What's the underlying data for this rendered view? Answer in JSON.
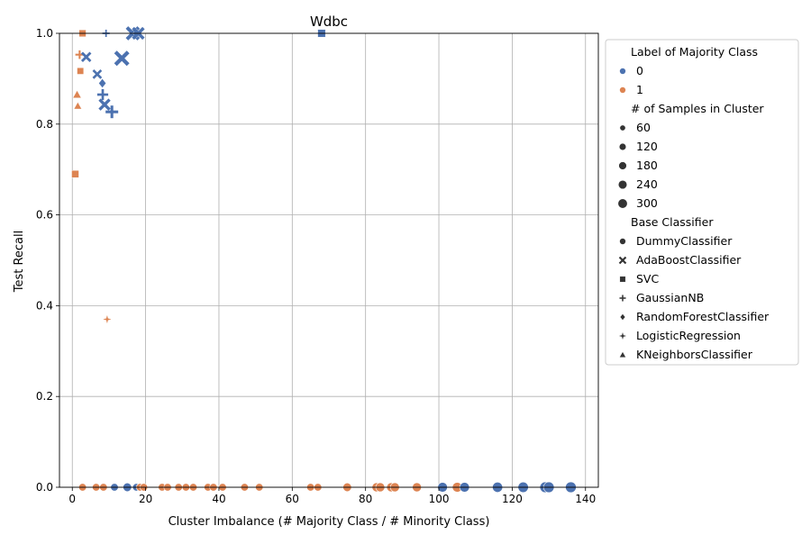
{
  "chart_data": {
    "type": "scatter",
    "title": "Wdbc",
    "xlabel": "Cluster Imbalance (# Majority Class / # Minority Class)",
    "ylabel": "Test Recall",
    "xlim": [
      -3.5,
      143.5
    ],
    "ylim": [
      0.0,
      1.0
    ],
    "x_ticks": [
      0,
      20,
      40,
      60,
      80,
      100,
      120,
      140
    ],
    "y_ticks": [
      0.0,
      0.2,
      0.4,
      0.6,
      0.8,
      1.0
    ],
    "grid": true,
    "legend_placement": "outside-right",
    "colors": {
      "0": "#4c72b0",
      "1": "#dd8452"
    },
    "legend": {
      "hue_title": "Label of Majority Class",
      "hue_entries": [
        {
          "label": "0",
          "color": "#4c72b0"
        },
        {
          "label": "1",
          "color": "#dd8452"
        }
      ],
      "size_title": "# of Samples in Cluster",
      "size_entries": [
        "60",
        "120",
        "180",
        "240",
        "300"
      ],
      "style_title": "Base Classifier",
      "style_entries": [
        {
          "label": "DummyClassifier",
          "marker": "circle"
        },
        {
          "label": "AdaBoostClassifier",
          "marker": "x"
        },
        {
          "label": "SVC",
          "marker": "square"
        },
        {
          "label": "GaussianNB",
          "marker": "plus"
        },
        {
          "label": "RandomForestClassifier",
          "marker": "diamond"
        },
        {
          "label": "LogisticRegression",
          "marker": "star"
        },
        {
          "label": "KNeighborsClassifier",
          "marker": "triangle"
        }
      ]
    },
    "points": [
      {
        "x": 2.8,
        "y": 1.0,
        "label": "1",
        "classifier": "SVC",
        "samples": 60
      },
      {
        "x": 16.5,
        "y": 1.0,
        "label": "0",
        "classifier": "AdaBoostClassifier",
        "samples": 240
      },
      {
        "x": 17.5,
        "y": 1.0,
        "label": "0",
        "classifier": "RandomForestClassifier",
        "samples": 120
      },
      {
        "x": 18.0,
        "y": 1.0,
        "label": "0",
        "classifier": "AdaBoostClassifier",
        "samples": 180
      },
      {
        "x": 9.2,
        "y": 1.0,
        "label": "0",
        "classifier": "GaussianNB",
        "samples": 50
      },
      {
        "x": 68.0,
        "y": 1.0,
        "label": "0",
        "classifier": "SVC",
        "samples": 90
      },
      {
        "x": 2.0,
        "y": 0.953,
        "label": "1",
        "classifier": "GaussianNB",
        "samples": 90
      },
      {
        "x": 3.8,
        "y": 0.948,
        "label": "0",
        "classifier": "AdaBoostClassifier",
        "samples": 90
      },
      {
        "x": 13.5,
        "y": 0.945,
        "label": "0",
        "classifier": "AdaBoostClassifier",
        "samples": 300
      },
      {
        "x": 2.2,
        "y": 0.917,
        "label": "1",
        "classifier": "SVC",
        "samples": 50
      },
      {
        "x": 6.8,
        "y": 0.91,
        "label": "0",
        "classifier": "AdaBoostClassifier",
        "samples": 70
      },
      {
        "x": 8.2,
        "y": 0.89,
        "label": "0",
        "classifier": "RandomForestClassifier",
        "samples": 110
      },
      {
        "x": 8.3,
        "y": 0.865,
        "label": "0",
        "classifier": "GaussianNB",
        "samples": 200
      },
      {
        "x": 1.3,
        "y": 0.865,
        "label": "1",
        "classifier": "KNeighborsClassifier",
        "samples": 80
      },
      {
        "x": 8.8,
        "y": 0.843,
        "label": "0",
        "classifier": "AdaBoostClassifier",
        "samples": 150
      },
      {
        "x": 1.5,
        "y": 0.84,
        "label": "1",
        "classifier": "KNeighborsClassifier",
        "samples": 60
      },
      {
        "x": 10.8,
        "y": 0.827,
        "label": "0",
        "classifier": "GaussianNB",
        "samples": 300
      },
      {
        "x": 0.8,
        "y": 0.69,
        "label": "1",
        "classifier": "SVC",
        "samples": 70
      },
      {
        "x": 9.5,
        "y": 0.37,
        "label": "1",
        "classifier": "LogisticRegression",
        "samples": 50
      },
      {
        "x": 2.8,
        "y": 0.0,
        "label": "1",
        "classifier": "DummyClassifier",
        "samples": 60
      },
      {
        "x": 6.5,
        "y": 0.0,
        "label": "1",
        "classifier": "DummyClassifier",
        "samples": 60
      },
      {
        "x": 8.5,
        "y": 0.0,
        "label": "1",
        "classifier": "DummyClassifier",
        "samples": 60
      },
      {
        "x": 11.5,
        "y": 0.0,
        "label": "0",
        "classifier": "DummyClassifier",
        "samples": 60
      },
      {
        "x": 15.0,
        "y": 0.0,
        "label": "0",
        "classifier": "DummyClassifier",
        "samples": 90
      },
      {
        "x": 17.5,
        "y": 0.0,
        "label": "0",
        "classifier": "DummyClassifier",
        "samples": 60
      },
      {
        "x": 18.5,
        "y": 0.0,
        "label": "1",
        "classifier": "DummyClassifier",
        "samples": 60
      },
      {
        "x": 19.5,
        "y": 0.0,
        "label": "1",
        "classifier": "DummyClassifier",
        "samples": 60
      },
      {
        "x": 24.5,
        "y": 0.0,
        "label": "1",
        "classifier": "DummyClassifier",
        "samples": 60
      },
      {
        "x": 26.0,
        "y": 0.0,
        "label": "1",
        "classifier": "DummyClassifier",
        "samples": 60
      },
      {
        "x": 29.0,
        "y": 0.0,
        "label": "1",
        "classifier": "DummyClassifier",
        "samples": 60
      },
      {
        "x": 31.0,
        "y": 0.0,
        "label": "1",
        "classifier": "DummyClassifier",
        "samples": 60
      },
      {
        "x": 33.0,
        "y": 0.0,
        "label": "1",
        "classifier": "DummyClassifier",
        "samples": 60
      },
      {
        "x": 37.0,
        "y": 0.0,
        "label": "1",
        "classifier": "DummyClassifier",
        "samples": 60
      },
      {
        "x": 38.5,
        "y": 0.0,
        "label": "1",
        "classifier": "DummyClassifier",
        "samples": 60
      },
      {
        "x": 41.0,
        "y": 0.0,
        "label": "1",
        "classifier": "DummyClassifier",
        "samples": 60
      },
      {
        "x": 47.0,
        "y": 0.0,
        "label": "1",
        "classifier": "DummyClassifier",
        "samples": 60
      },
      {
        "x": 51.0,
        "y": 0.0,
        "label": "1",
        "classifier": "DummyClassifier",
        "samples": 60
      },
      {
        "x": 65.0,
        "y": 0.0,
        "label": "1",
        "classifier": "DummyClassifier",
        "samples": 60
      },
      {
        "x": 67.0,
        "y": 0.0,
        "label": "1",
        "classifier": "DummyClassifier",
        "samples": 60
      },
      {
        "x": 75.0,
        "y": 0.0,
        "label": "1",
        "classifier": "DummyClassifier",
        "samples": 90
      },
      {
        "x": 83.0,
        "y": 0.0,
        "label": "1",
        "classifier": "DummyClassifier",
        "samples": 110
      },
      {
        "x": 84.0,
        "y": 0.0,
        "label": "1",
        "classifier": "DummyClassifier",
        "samples": 110
      },
      {
        "x": 87.0,
        "y": 0.0,
        "label": "1",
        "classifier": "DummyClassifier",
        "samples": 110
      },
      {
        "x": 88.0,
        "y": 0.0,
        "label": "1",
        "classifier": "DummyClassifier",
        "samples": 110
      },
      {
        "x": 94.0,
        "y": 0.0,
        "label": "1",
        "classifier": "DummyClassifier",
        "samples": 110
      },
      {
        "x": 101.0,
        "y": 0.0,
        "label": "0",
        "classifier": "DummyClassifier",
        "samples": 140
      },
      {
        "x": 105.0,
        "y": 0.0,
        "label": "1",
        "classifier": "DummyClassifier",
        "samples": 140
      },
      {
        "x": 107.0,
        "y": 0.0,
        "label": "0",
        "classifier": "DummyClassifier",
        "samples": 140
      },
      {
        "x": 116.0,
        "y": 0.0,
        "label": "0",
        "classifier": "DummyClassifier",
        "samples": 160
      },
      {
        "x": 123.0,
        "y": 0.0,
        "label": "0",
        "classifier": "DummyClassifier",
        "samples": 170
      },
      {
        "x": 129.0,
        "y": 0.0,
        "label": "0",
        "classifier": "DummyClassifier",
        "samples": 180
      },
      {
        "x": 130.0,
        "y": 0.0,
        "label": "0",
        "classifier": "DummyClassifier",
        "samples": 180
      },
      {
        "x": 136.0,
        "y": 0.0,
        "label": "0",
        "classifier": "DummyClassifier",
        "samples": 190
      }
    ]
  }
}
